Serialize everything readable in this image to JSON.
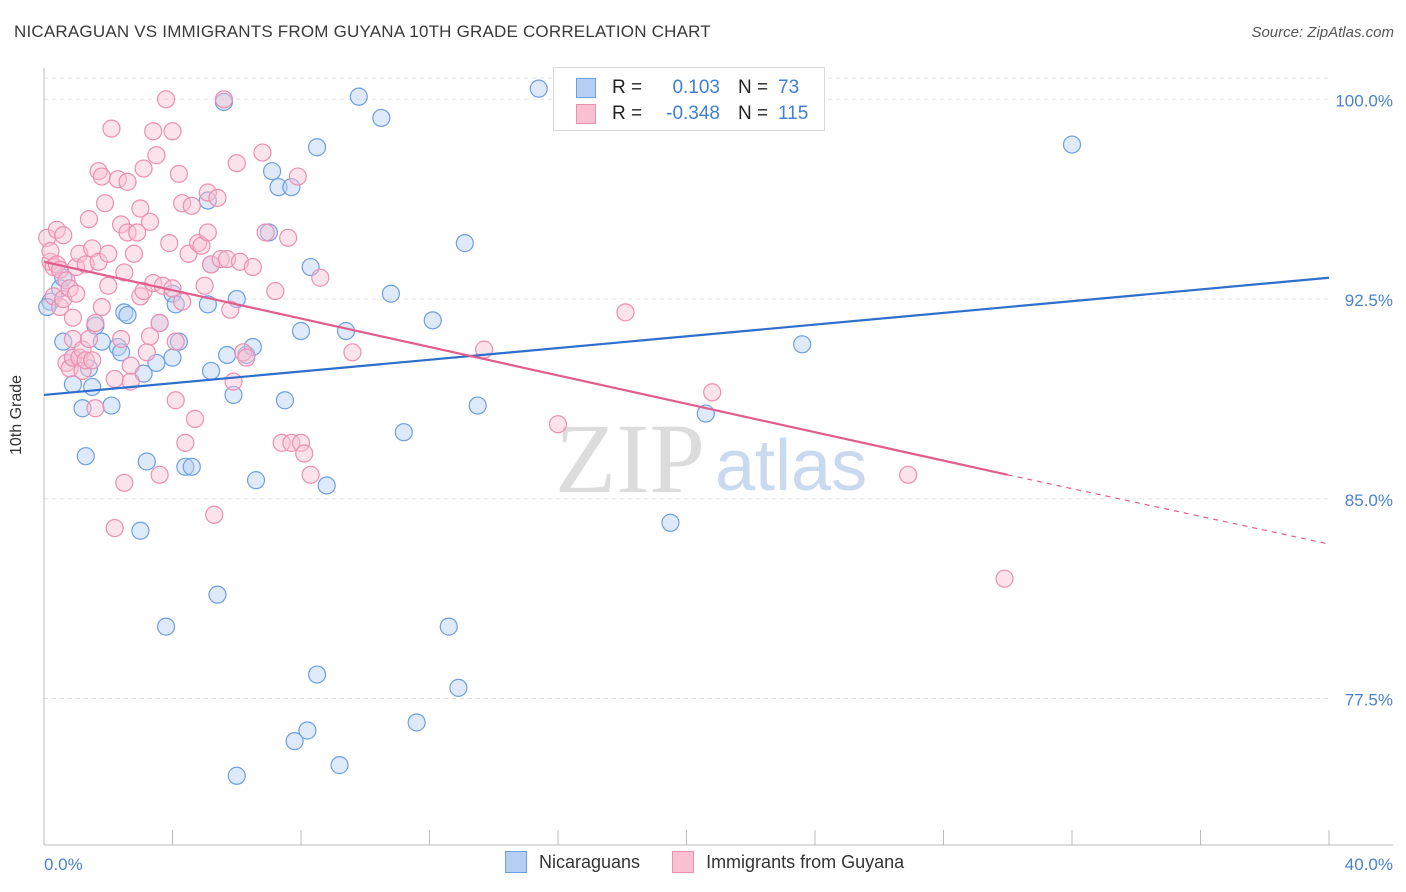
{
  "title": "NICARAGUAN VS IMMIGRANTS FROM GUYANA 10TH GRADE CORRELATION CHART",
  "source": "Source: ZipAtlas.com",
  "watermark": {
    "zip": "ZIP",
    "atlas": "atlas"
  },
  "legend": {
    "r_label": "R =",
    "n_label": "N =",
    "rows": [
      {
        "name": "Nicaraguans",
        "r": "0.103",
        "n": "73",
        "fill": "#b6cef2",
        "stroke": "#6e9fe0"
      },
      {
        "name": "Immigrants from Guyana",
        "r": "-0.348",
        "n": "115",
        "fill": "#f9c0d2",
        "stroke": "#ec8fb0"
      }
    ]
  },
  "chart_data": {
    "type": "scatter",
    "title": "NICARAGUAN VS IMMIGRANTS FROM GUYANA 10TH GRADE CORRELATION CHART",
    "xlabel": "",
    "ylabel": "10th Grade",
    "xlim": [
      0.0,
      40.0
    ],
    "ylim": [
      72.0,
      100.8
    ],
    "x_tick_labels": [
      "0.0%",
      "40.0%"
    ],
    "y_ticks": [
      77.5,
      85.0,
      92.5,
      100.0
    ],
    "y_tick_labels": [
      "77.5%",
      "85.0%",
      "92.5%",
      "100.0%"
    ],
    "grid": true,
    "legend_position": "top-center",
    "colors": {
      "blue": "#3f7fd4",
      "pink": "#e8709c",
      "blue_line": "#2e6fcc",
      "pink_line": "#e05d8e"
    },
    "series": [
      {
        "name": "Nicaraguans",
        "color": "#6e9fe0",
        "trend": {
          "x": [
            0.0,
            40.0
          ],
          "y": [
            88.9,
            93.3
          ]
        },
        "points": [
          [
            0.2,
            92.4
          ],
          [
            0.5,
            92.9
          ],
          [
            0.6,
            93.3
          ],
          [
            0.6,
            90.9
          ],
          [
            0.9,
            90.3
          ],
          [
            0.9,
            89.3
          ],
          [
            1.2,
            88.4
          ],
          [
            1.3,
            86.6
          ],
          [
            1.4,
            89.9
          ],
          [
            1.5,
            89.2
          ],
          [
            1.6,
            91.5
          ],
          [
            1.8,
            90.9
          ],
          [
            2.1,
            88.5
          ],
          [
            2.3,
            90.7
          ],
          [
            2.4,
            90.5
          ],
          [
            2.5,
            92.0
          ],
          [
            2.6,
            91.9
          ],
          [
            3.0,
            83.8
          ],
          [
            3.1,
            89.7
          ],
          [
            3.2,
            86.4
          ],
          [
            3.5,
            90.1
          ],
          [
            3.6,
            91.6
          ],
          [
            3.8,
            80.2
          ],
          [
            4.0,
            92.7
          ],
          [
            4.0,
            90.3
          ],
          [
            4.1,
            92.3
          ],
          [
            4.2,
            90.9
          ],
          [
            4.4,
            86.2
          ],
          [
            4.6,
            86.2
          ],
          [
            5.1,
            96.2
          ],
          [
            5.1,
            92.3
          ],
          [
            5.2,
            93.8
          ],
          [
            5.2,
            89.8
          ],
          [
            5.4,
            81.4
          ],
          [
            5.6,
            99.9
          ],
          [
            5.7,
            90.4
          ],
          [
            5.9,
            88.9
          ],
          [
            6.0,
            92.5
          ],
          [
            6.0,
            74.6
          ],
          [
            6.3,
            90.4
          ],
          [
            6.5,
            90.7
          ],
          [
            6.6,
            85.7
          ],
          [
            7.0,
            95.0
          ],
          [
            7.1,
            97.3
          ],
          [
            7.3,
            96.7
          ],
          [
            7.5,
            88.7
          ],
          [
            7.7,
            96.7
          ],
          [
            7.8,
            75.9
          ],
          [
            8.0,
            91.3
          ],
          [
            8.2,
            76.3
          ],
          [
            8.3,
            93.7
          ],
          [
            8.5,
            98.2
          ],
          [
            8.5,
            78.4
          ],
          [
            8.8,
            85.5
          ],
          [
            9.2,
            75.0
          ],
          [
            9.4,
            91.3
          ],
          [
            9.8,
            100.1
          ],
          [
            10.5,
            99.3
          ],
          [
            10.8,
            92.7
          ],
          [
            11.2,
            87.5
          ],
          [
            11.6,
            76.6
          ],
          [
            12.1,
            91.7
          ],
          [
            12.6,
            80.2
          ],
          [
            12.9,
            77.9
          ],
          [
            13.1,
            94.6
          ],
          [
            13.5,
            88.5
          ],
          [
            15.4,
            100.4
          ],
          [
            19.5,
            84.1
          ],
          [
            20.6,
            88.2
          ],
          [
            21.1,
            100.2
          ],
          [
            23.6,
            90.8
          ],
          [
            32.0,
            98.3
          ],
          [
            0.1,
            92.2
          ]
        ]
      },
      {
        "name": "Immigrants from Guyana",
        "color": "#ec8fb0",
        "trend": {
          "x": [
            0.0,
            30.0
          ],
          "y": [
            93.9,
            85.9
          ]
        },
        "trend_dashed": {
          "x": [
            30.0,
            40.0
          ],
          "y": [
            85.9,
            83.3
          ]
        },
        "points": [
          [
            0.1,
            94.8
          ],
          [
            0.2,
            93.9
          ],
          [
            0.2,
            94.3
          ],
          [
            0.3,
            93.7
          ],
          [
            0.3,
            92.6
          ],
          [
            0.4,
            93.8
          ],
          [
            0.4,
            95.1
          ],
          [
            0.5,
            92.2
          ],
          [
            0.5,
            93.6
          ],
          [
            0.6,
            94.9
          ],
          [
            0.6,
            92.5
          ],
          [
            0.7,
            93.2
          ],
          [
            0.7,
            90.1
          ],
          [
            0.8,
            92.9
          ],
          [
            0.8,
            89.9
          ],
          [
            0.9,
            91.0
          ],
          [
            0.9,
            90.3
          ],
          [
            1.0,
            93.7
          ],
          [
            1.0,
            92.7
          ],
          [
            1.1,
            90.3
          ],
          [
            1.1,
            94.2
          ],
          [
            1.2,
            89.8
          ],
          [
            1.2,
            90.6
          ],
          [
            1.3,
            90.2
          ],
          [
            1.3,
            93.8
          ],
          [
            1.4,
            95.5
          ],
          [
            1.4,
            91.0
          ],
          [
            1.5,
            94.4
          ],
          [
            1.5,
            90.2
          ],
          [
            1.6,
            88.4
          ],
          [
            1.7,
            97.3
          ],
          [
            1.7,
            93.9
          ],
          [
            1.8,
            97.1
          ],
          [
            1.8,
            92.2
          ],
          [
            1.9,
            96.1
          ],
          [
            2.0,
            94.2
          ],
          [
            2.0,
            93.0
          ],
          [
            2.1,
            98.9
          ],
          [
            2.2,
            89.5
          ],
          [
            2.2,
            83.9
          ],
          [
            2.3,
            97.0
          ],
          [
            2.4,
            95.3
          ],
          [
            2.4,
            91.0
          ],
          [
            2.5,
            93.5
          ],
          [
            2.5,
            85.6
          ],
          [
            2.6,
            95.0
          ],
          [
            2.6,
            96.9
          ],
          [
            2.7,
            89.4
          ],
          [
            2.8,
            94.2
          ],
          [
            2.9,
            95.0
          ],
          [
            3.0,
            92.6
          ],
          [
            3.0,
            95.9
          ],
          [
            3.1,
            97.4
          ],
          [
            3.1,
            92.8
          ],
          [
            3.2,
            90.5
          ],
          [
            3.3,
            95.4
          ],
          [
            3.3,
            91.1
          ],
          [
            3.4,
            98.8
          ],
          [
            3.4,
            93.1
          ],
          [
            3.5,
            97.9
          ],
          [
            3.6,
            91.6
          ],
          [
            3.6,
            85.9
          ],
          [
            3.7,
            93.0
          ],
          [
            3.8,
            100.0
          ],
          [
            3.9,
            94.6
          ],
          [
            4.0,
            98.8
          ],
          [
            4.0,
            92.9
          ],
          [
            4.1,
            90.9
          ],
          [
            4.1,
            88.7
          ],
          [
            4.2,
            97.2
          ],
          [
            4.3,
            96.1
          ],
          [
            4.3,
            92.4
          ],
          [
            4.4,
            87.1
          ],
          [
            4.5,
            94.2
          ],
          [
            4.6,
            96.0
          ],
          [
            4.7,
            88.0
          ],
          [
            4.8,
            94.6
          ],
          [
            4.9,
            94.5
          ],
          [
            5.0,
            93.0
          ],
          [
            5.1,
            96.5
          ],
          [
            5.1,
            95.0
          ],
          [
            5.2,
            93.8
          ],
          [
            5.3,
            84.4
          ],
          [
            5.4,
            96.3
          ],
          [
            5.5,
            94.0
          ],
          [
            5.6,
            100.0
          ],
          [
            5.7,
            94.0
          ],
          [
            5.8,
            92.1
          ],
          [
            5.9,
            89.4
          ],
          [
            6.0,
            97.6
          ],
          [
            6.1,
            93.9
          ],
          [
            6.2,
            90.5
          ],
          [
            6.3,
            90.3
          ],
          [
            6.5,
            93.7
          ],
          [
            6.8,
            98.0
          ],
          [
            6.9,
            95.0
          ],
          [
            7.2,
            92.8
          ],
          [
            7.4,
            87.1
          ],
          [
            7.6,
            94.8
          ],
          [
            7.7,
            87.1
          ],
          [
            7.9,
            97.1
          ],
          [
            8.0,
            87.1
          ],
          [
            8.1,
            86.7
          ],
          [
            8.3,
            85.9
          ],
          [
            8.6,
            93.3
          ],
          [
            9.6,
            90.5
          ],
          [
            13.7,
            90.6
          ],
          [
            16.0,
            87.8
          ],
          [
            18.1,
            92.0
          ],
          [
            20.8,
            89.0
          ],
          [
            26.9,
            85.9
          ],
          [
            29.9,
            82.0
          ],
          [
            1.6,
            91.6
          ],
          [
            2.7,
            90.0
          ],
          [
            0.9,
            91.8
          ]
        ]
      }
    ]
  }
}
